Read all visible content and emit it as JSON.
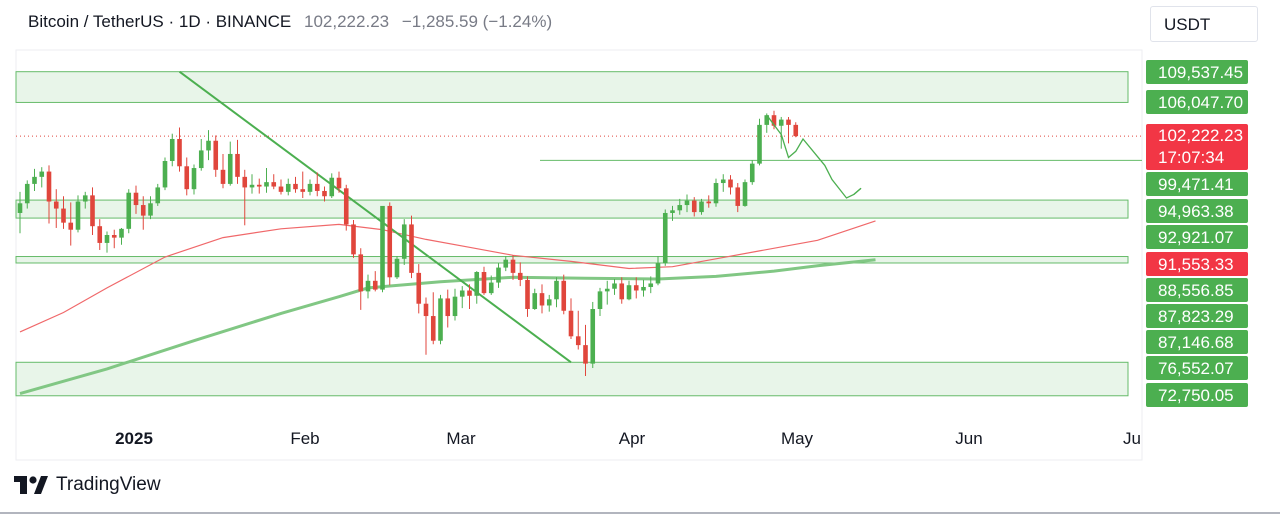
{
  "header": {
    "symbol": "Bitcoin / TetherUS · 1D · BINANCE",
    "price": "102,222.23",
    "change": "−1,285.59 (−1.24%)"
  },
  "currency_button": "USDT",
  "footer": {
    "brand": "TradingView"
  },
  "colors": {
    "bull": "#4caf50",
    "bear": "#e0463c",
    "ma_red": "#f0686a",
    "ma_green": "#81c784",
    "zone_fill": "#e8f5e9",
    "zone_line": "#66bb6a",
    "trendline": "#4caf50",
    "axis_label_green": "#4caf50",
    "axis_label_red": "#f23645"
  },
  "chart_data": {
    "type": "candlestick",
    "title": "Bitcoin / TetherUS · 1D · BINANCE",
    "x_axis_labels": [
      "2025",
      "Feb",
      "Mar",
      "Apr",
      "May",
      "Jun",
      "Ju"
    ],
    "ylim": [
      70000,
      112000
    ],
    "price_levels": [
      {
        "value": 109537.45,
        "label": "109,537.45",
        "kind": "zone"
      },
      {
        "value": 106047.7,
        "label": "106,047.70",
        "kind": "zone"
      },
      {
        "value": 102222.23,
        "label": "102,222.23",
        "sublabel": "17:07:34",
        "kind": "last-price"
      },
      {
        "value": 99471.41,
        "label": "99,471.41",
        "kind": "line"
      },
      {
        "value": 94963.38,
        "label": "94,963.38",
        "kind": "zone"
      },
      {
        "value": 92921.07,
        "label": "92,921.07",
        "kind": "zone"
      },
      {
        "value": 91553.33,
        "label": "91,553.33",
        "kind": "ma"
      },
      {
        "value": 88556.85,
        "label": "88,556.85",
        "kind": "zone"
      },
      {
        "value": 87823.29,
        "label": "87,823.29",
        "kind": "zone"
      },
      {
        "value": 87146.68,
        "label": "87,146.68",
        "kind": "ma"
      },
      {
        "value": 76552.07,
        "label": "76,552.07",
        "kind": "zone"
      },
      {
        "value": 72750.05,
        "label": "72,750.05",
        "kind": "zone"
      }
    ],
    "zones": [
      {
        "from": 106047.7,
        "to": 109537.45
      },
      {
        "from": 92921.07,
        "to": 94963.38
      },
      {
        "from": 87823.29,
        "to": 88556.85
      },
      {
        "from": 72750.05,
        "to": 76552.07
      }
    ],
    "ohlc": [
      [
        0,
        93500,
        95900,
        91200,
        94600
      ],
      [
        1,
        94600,
        97200,
        94000,
        96800
      ],
      [
        2,
        96800,
        98500,
        96000,
        97600
      ],
      [
        3,
        97600,
        98700,
        96400,
        98200
      ],
      [
        4,
        98200,
        98900,
        92300,
        94800
      ],
      [
        5,
        94800,
        96200,
        91800,
        94000
      ],
      [
        6,
        94000,
        95400,
        91700,
        92400
      ],
      [
        7,
        92400,
        94700,
        89800,
        91600
      ],
      [
        8,
        91600,
        95500,
        91300,
        94800
      ],
      [
        9,
        94800,
        95900,
        94000,
        95500
      ],
      [
        10,
        95500,
        96400,
        91000,
        92000
      ],
      [
        11,
        92000,
        92800,
        89300,
        90100
      ],
      [
        12,
        90100,
        91400,
        89000,
        91000
      ],
      [
        13,
        91000,
        91600,
        89500,
        90700
      ],
      [
        14,
        90700,
        91800,
        89900,
        91700
      ],
      [
        15,
        91700,
        96200,
        91200,
        95800
      ],
      [
        16,
        95800,
        96600,
        93400,
        94400
      ],
      [
        17,
        94400,
        95400,
        91600,
        93200
      ],
      [
        18,
        93200,
        95400,
        92800,
        94600
      ],
      [
        19,
        94600,
        96800,
        94300,
        96400
      ],
      [
        20,
        96400,
        99800,
        96100,
        99400
      ],
      [
        21,
        99400,
        102500,
        98800,
        101900
      ],
      [
        22,
        101900,
        103200,
        98200,
        98800
      ],
      [
        23,
        98800,
        99800,
        95500,
        96200
      ],
      [
        24,
        96200,
        99000,
        95600,
        98600
      ],
      [
        25,
        98600,
        101900,
        98300,
        100600
      ],
      [
        26,
        100600,
        102900,
        99500,
        101700
      ],
      [
        27,
        101700,
        102300,
        97600,
        98400
      ],
      [
        28,
        98400,
        100200,
        96300,
        96800
      ],
      [
        29,
        96800,
        101600,
        96600,
        100200
      ],
      [
        30,
        100200,
        101800,
        96800,
        97600
      ],
      [
        31,
        97600,
        98400,
        92100,
        96400
      ],
      [
        32,
        96400,
        97900,
        95700,
        96700
      ],
      [
        33,
        96700,
        97400,
        95700,
        96500
      ],
      [
        34,
        96500,
        98600,
        95800,
        97000
      ],
      [
        35,
        97000,
        97900,
        96200,
        96500
      ],
      [
        36,
        96500,
        97300,
        95600,
        95900
      ],
      [
        37,
        95900,
        97400,
        95500,
        96800
      ],
      [
        38,
        96800,
        97600,
        95800,
        96200
      ],
      [
        39,
        96200,
        98200,
        95200,
        95900
      ],
      [
        40,
        95900,
        97300,
        95500,
        96800
      ],
      [
        41,
        96800,
        98100,
        95400,
        96000
      ],
      [
        42,
        96000,
        96500,
        94800,
        95400
      ],
      [
        43,
        95400,
        98000,
        95200,
        97500
      ],
      [
        44,
        97500,
        98200,
        95800,
        96300
      ],
      [
        45,
        96300,
        96700,
        91500,
        92200
      ],
      [
        46,
        92200,
        92700,
        88400,
        88800
      ],
      [
        47,
        88800,
        89500,
        82500,
        84600
      ],
      [
        48,
        84600,
        86500,
        83800,
        85800
      ],
      [
        49,
        85800,
        86900,
        84600,
        84800
      ],
      [
        50,
        84800,
        94200,
        84500,
        94300
      ],
      [
        51,
        94300,
        94700,
        85300,
        86200
      ],
      [
        52,
        86200,
        88600,
        86000,
        88300
      ],
      [
        53,
        88300,
        92800,
        87600,
        92200
      ],
      [
        54,
        92200,
        93200,
        86100,
        86700
      ],
      [
        55,
        86700,
        87700,
        82100,
        83200
      ],
      [
        56,
        83200,
        83900,
        77400,
        81800
      ],
      [
        57,
        81800,
        84500,
        78600,
        79000
      ],
      [
        58,
        79000,
        84200,
        78600,
        83800
      ],
      [
        59,
        83800,
        84800,
        80500,
        81800
      ],
      [
        60,
        81800,
        84900,
        81300,
        84000
      ],
      [
        61,
        84000,
        85200,
        82700,
        84700
      ],
      [
        62,
        84700,
        85400,
        82600,
        84100
      ],
      [
        63,
        84100,
        86900,
        83200,
        86800
      ],
      [
        64,
        86800,
        87400,
        84200,
        84400
      ],
      [
        65,
        84400,
        86400,
        84200,
        85600
      ],
      [
        66,
        85600,
        87800,
        85000,
        87300
      ],
      [
        67,
        87300,
        88600,
        86900,
        88200
      ],
      [
        68,
        88200,
        88700,
        85900,
        86700
      ],
      [
        69,
        86700,
        87900,
        85200,
        85900
      ],
      [
        70,
        85900,
        86300,
        81700,
        82600
      ],
      [
        71,
        82600,
        84900,
        82500,
        84400
      ],
      [
        72,
        84400,
        85400,
        82100,
        83000
      ],
      [
        73,
        83000,
        84200,
        82300,
        83700
      ],
      [
        74,
        83700,
        86200,
        82800,
        85800
      ],
      [
        75,
        85800,
        86500,
        82000,
        82400
      ],
      [
        76,
        82400,
        83800,
        79200,
        79500
      ],
      [
        77,
        79500,
        82400,
        78000,
        78500
      ],
      [
        78,
        78500,
        80800,
        75000,
        76400
      ],
      [
        79,
        76400,
        83400,
        75900,
        82600
      ],
      [
        80,
        82600,
        85000,
        81800,
        84600
      ],
      [
        81,
        84600,
        85800,
        83100,
        84900
      ],
      [
        82,
        84900,
        86000,
        84200,
        85500
      ],
      [
        83,
        85500,
        86200,
        83200,
        83700
      ],
      [
        84,
        83700,
        85800,
        83600,
        85300
      ],
      [
        85,
        85300,
        86200,
        83800,
        84700
      ],
      [
        86,
        84700,
        85900,
        84000,
        85100
      ],
      [
        87,
        85100,
        86300,
        84400,
        85500
      ],
      [
        88,
        85500,
        88600,
        85300,
        87800
      ],
      [
        89,
        87800,
        93900,
        87500,
        93500
      ],
      [
        90,
        93500,
        94300,
        92600,
        93800
      ],
      [
        91,
        93800,
        95100,
        93300,
        94400
      ],
      [
        92,
        94400,
        95600,
        93600,
        94900
      ],
      [
        93,
        94900,
        95300,
        93100,
        93600
      ],
      [
        94,
        93600,
        95100,
        93300,
        94800
      ],
      [
        95,
        94800,
        95500,
        94100,
        94600
      ],
      [
        96,
        94600,
        97400,
        94200,
        96900
      ],
      [
        97,
        96900,
        97900,
        95900,
        97300
      ],
      [
        98,
        97300,
        97800,
        95600,
        96400
      ],
      [
        99,
        96400,
        96900,
        93600,
        94300
      ],
      [
        100,
        94300,
        97300,
        94200,
        97000
      ],
      [
        101,
        97000,
        99500,
        96700,
        99100
      ],
      [
        102,
        99100,
        104200,
        98900,
        103500
      ],
      [
        103,
        103500,
        104800,
        102600,
        104600
      ],
      [
        104,
        104600,
        105100,
        103000,
        103400
      ],
      [
        105,
        103400,
        104400,
        100800,
        104100
      ],
      [
        106,
        104100,
        104400,
        101400,
        103500
      ],
      [
        107,
        103500,
        103800,
        102100,
        102222
      ]
    ],
    "ma_long": [
      [
        0,
        73000
      ],
      [
        12,
        75800
      ],
      [
        24,
        79000
      ],
      [
        36,
        82100
      ],
      [
        44,
        84000
      ],
      [
        48,
        85000
      ],
      [
        58,
        85700
      ],
      [
        68,
        86200
      ],
      [
        78,
        86100
      ],
      [
        88,
        86000
      ],
      [
        96,
        86300
      ],
      [
        104,
        86900
      ],
      [
        110,
        87500
      ],
      [
        118,
        88200
      ]
    ],
    "ma_short": [
      [
        0,
        80000
      ],
      [
        6,
        82200
      ],
      [
        12,
        85000
      ],
      [
        20,
        88500
      ],
      [
        28,
        90700
      ],
      [
        36,
        91700
      ],
      [
        44,
        92200
      ],
      [
        50,
        91600
      ],
      [
        56,
        90500
      ],
      [
        62,
        89600
      ],
      [
        68,
        88700
      ],
      [
        76,
        88000
      ],
      [
        84,
        87200
      ],
      [
        90,
        87400
      ],
      [
        96,
        88300
      ],
      [
        102,
        89200
      ],
      [
        110,
        90400
      ],
      [
        118,
        92600
      ]
    ],
    "trendline": [
      [
        22,
        109537.45
      ],
      [
        76,
        76552.07
      ]
    ],
    "projection": [
      [
        103,
        104600
      ],
      [
        105,
        102400
      ],
      [
        106,
        99800
      ],
      [
        107,
        100500
      ],
      [
        108,
        101900
      ],
      [
        111,
        98900
      ],
      [
        112,
        97300
      ],
      [
        114,
        95200
      ],
      [
        115,
        95600
      ],
      [
        116,
        96300
      ]
    ]
  }
}
